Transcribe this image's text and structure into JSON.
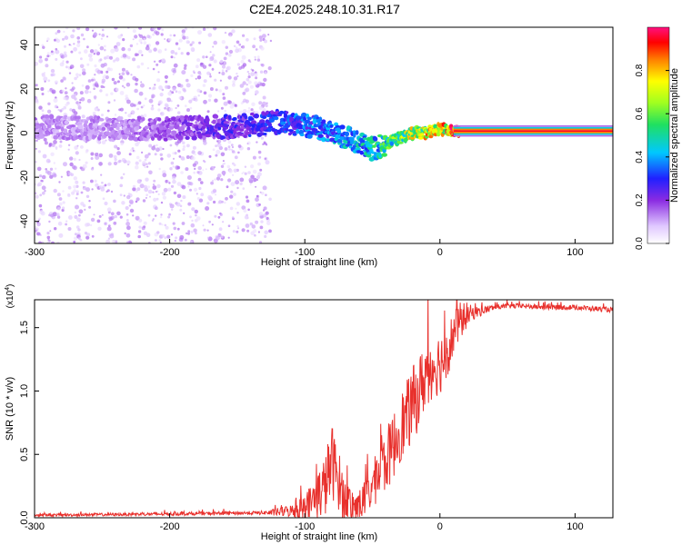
{
  "title": "C2E4.2025.248.10.31.R17",
  "chart_data": [
    {
      "type": "heatmap",
      "name": "spectrogram",
      "xlabel": "Height of straight line (km)",
      "ylabel": "Frequency (Hz)",
      "xlim": [
        -300,
        128
      ],
      "ylim": [
        -50,
        48
      ],
      "xticks": [
        -300,
        -200,
        -100,
        0,
        100
      ],
      "xtick_labels": [
        "-300",
        "-200",
        "-100",
        "0",
        "100"
      ],
      "yticks": [
        -40,
        -20,
        0,
        20,
        40
      ],
      "ytick_labels": [
        "-40",
        "-20",
        "0",
        "20",
        "40"
      ],
      "colorbar": {
        "label": "Normalized spectral amplitude",
        "range": [
          0,
          1
        ],
        "ticks": [
          0.0,
          0.2,
          0.4,
          0.6,
          0.8
        ],
        "tick_labels": [
          "0.0",
          "0.2",
          "0.4",
          "0.6",
          "0.8"
        ]
      },
      "ridge": {
        "x": [
          -300,
          -250,
          -200,
          -150,
          -120,
          -100,
          -80,
          -60,
          -50,
          -40,
          -30,
          -20,
          -10,
          0,
          10,
          128
        ],
        "freq": [
          3,
          2,
          2,
          3,
          5,
          4,
          0,
          -4,
          -7,
          -5,
          -2,
          0,
          0,
          2,
          1,
          1
        ],
        "amplitude": [
          0.15,
          0.15,
          0.2,
          0.3,
          0.35,
          0.4,
          0.45,
          0.5,
          0.55,
          0.6,
          0.7,
          0.8,
          0.85,
          0.9,
          1.0,
          1.0
        ]
      },
      "noise_band_x": [
        -300,
        -125
      ]
    },
    {
      "type": "line",
      "name": "snr",
      "xlabel": "Height of straight line (km)",
      "ylabel": "SNR (10 * v/v)",
      "scale_label": "(x10",
      "scale_exponent": "4",
      "xlim": [
        -300,
        128
      ],
      "ylim": [
        0,
        1.72
      ],
      "xticks": [
        -300,
        -200,
        -100,
        0,
        100
      ],
      "xtick_labels": [
        "-300",
        "-200",
        "-100",
        "0",
        "100"
      ],
      "yticks": [
        0.0,
        0.5,
        1.0,
        1.5
      ],
      "ytick_labels": [
        "0.0",
        "0.5",
        "1.0",
        "1.5"
      ],
      "color": "#e8302c",
      "envelope": {
        "x": [
          -300,
          -200,
          -125,
          -105,
          -95,
          -85,
          -80,
          -75,
          -70,
          -62,
          -55,
          -50,
          -45,
          -40,
          -35,
          -30,
          -25,
          -20,
          -15,
          -10,
          -5,
          0,
          5,
          10,
          15,
          20,
          30,
          40,
          50,
          60,
          80,
          100,
          128
        ],
        "y": [
          0.02,
          0.03,
          0.04,
          0.06,
          0.12,
          0.25,
          0.45,
          0.3,
          0.12,
          0.08,
          0.15,
          0.25,
          0.35,
          0.45,
          0.55,
          0.7,
          0.78,
          0.9,
          1.0,
          1.15,
          1.2,
          1.22,
          1.3,
          1.45,
          1.55,
          1.6,
          1.63,
          1.66,
          1.67,
          1.67,
          1.66,
          1.66,
          1.64
        ]
      },
      "noise_amplitude": {
        "x": [
          -300,
          -130,
          -110,
          -95,
          -80,
          -72,
          -60,
          -40,
          -20,
          0,
          15,
          25,
          40,
          128
        ],
        "y": [
          0.01,
          0.015,
          0.05,
          0.15,
          0.3,
          0.2,
          0.12,
          0.25,
          0.3,
          0.25,
          0.15,
          0.05,
          0.02,
          0.02
        ]
      }
    }
  ]
}
